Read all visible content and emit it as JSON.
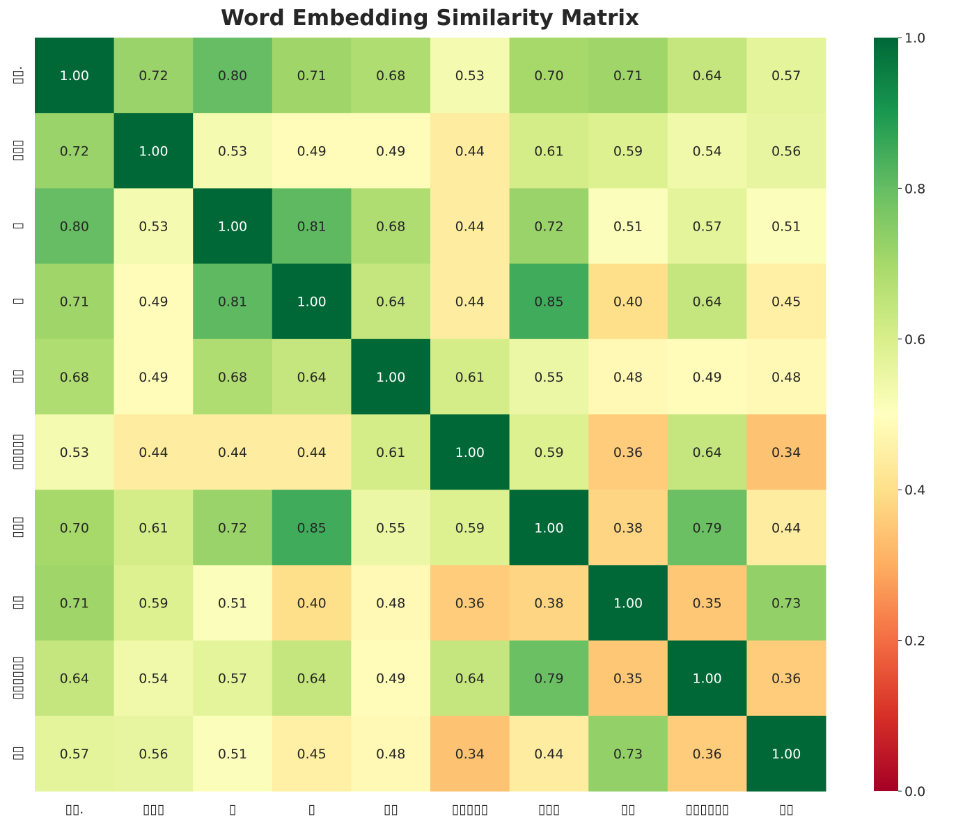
{
  "chart_data": {
    "type": "heatmap",
    "title": "Word Embedding Similarity Matrix",
    "labels": [
      "▯▯.",
      "▯▯▯",
      "▯",
      "▯",
      "▯▯",
      "▯▯▯▯▯",
      "▯▯▯",
      "▯▯",
      "▯▯▯▯▯▯",
      "▯▯"
    ],
    "values": [
      [
        1.0,
        0.72,
        0.8,
        0.71,
        0.68,
        0.53,
        0.7,
        0.71,
        0.64,
        0.57
      ],
      [
        0.72,
        1.0,
        0.53,
        0.49,
        0.49,
        0.44,
        0.61,
        0.59,
        0.54,
        0.56
      ],
      [
        0.8,
        0.53,
        1.0,
        0.81,
        0.68,
        0.44,
        0.72,
        0.51,
        0.57,
        0.51
      ],
      [
        0.71,
        0.49,
        0.81,
        1.0,
        0.64,
        0.44,
        0.85,
        0.4,
        0.64,
        0.45
      ],
      [
        0.68,
        0.49,
        0.68,
        0.64,
        1.0,
        0.61,
        0.55,
        0.48,
        0.49,
        0.48
      ],
      [
        0.53,
        0.44,
        0.44,
        0.44,
        0.61,
        1.0,
        0.59,
        0.36,
        0.64,
        0.34
      ],
      [
        0.7,
        0.61,
        0.72,
        0.85,
        0.55,
        0.59,
        1.0,
        0.38,
        0.79,
        0.44
      ],
      [
        0.71,
        0.59,
        0.51,
        0.4,
        0.48,
        0.36,
        0.38,
        1.0,
        0.35,
        0.73
      ],
      [
        0.64,
        0.54,
        0.57,
        0.64,
        0.49,
        0.64,
        0.79,
        0.35,
        1.0,
        0.36
      ],
      [
        0.57,
        0.56,
        0.51,
        0.45,
        0.48,
        0.34,
        0.44,
        0.73,
        0.36,
        1.0
      ]
    ],
    "colormap": "RdYlGn",
    "vlim": [
      0,
      1
    ],
    "colorbar_ticks": [
      "0.0",
      "0.2",
      "0.4",
      "0.6",
      "0.8",
      "1.0"
    ],
    "annotation_format": "2 decimals"
  }
}
